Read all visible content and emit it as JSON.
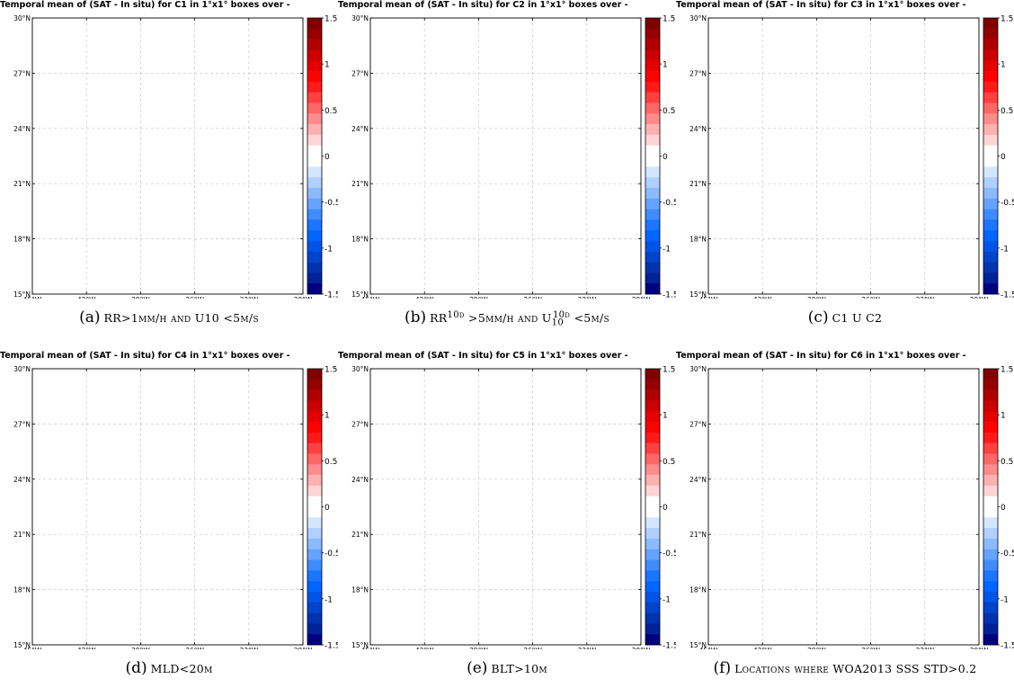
{
  "colorbar": {
    "ticks": [
      1.5,
      1,
      0.5,
      0,
      -0.5,
      -1,
      -1.5
    ],
    "tick_labels": [
      "1.5",
      "1",
      "0.5",
      "0",
      "-0.5",
      "-1",
      "-1.5"
    ],
    "range": [
      -1.5,
      1.5
    ],
    "colors_top_to_bottom": [
      "#800000",
      "#960000",
      "#b00000",
      "#cc0000",
      "#e60000",
      "#ff0000",
      "#ff1a1a",
      "#ff4040",
      "#ff6666",
      "#ff8c8c",
      "#ffb0b0",
      "#ffd4d4",
      "#ffffff",
      "#ffffff",
      "#d4e6ff",
      "#b0d0ff",
      "#8cbaff",
      "#66a3ff",
      "#408cff",
      "#1a75ff",
      "#0066ff",
      "#0055e6",
      "#0044cc",
      "#0033b0",
      "#002296",
      "#000080"
    ]
  },
  "chart_data": [
    {
      "type": "heatmap",
      "title": "Temporal mean of (SAT - In situ) for C1 in 1°x1° boxes over -",
      "xticks": [
        "45°W",
        "42°W",
        "39°W",
        "36°W",
        "33°W",
        "30°W"
      ],
      "yticks": [
        "30°N",
        "27°N",
        "24°N",
        "21°N",
        "18°N",
        "15°N"
      ],
      "xlim": [
        -45,
        -30
      ],
      "ylim": [
        15,
        30
      ],
      "grid": true,
      "values": [],
      "caption": {
        "letter": "(a)",
        "text": "RR>1mm/h and U10 <5m/s"
      }
    },
    {
      "type": "heatmap",
      "title": "Temporal mean of (SAT - In situ) for C2 in 1°x1° boxes over -",
      "xticks": [
        "45°W",
        "42°W",
        "39°W",
        "36°W",
        "33°W",
        "30°W"
      ],
      "yticks": [
        "30°N",
        "27°N",
        "24°N",
        "21°N",
        "18°N",
        "15°N"
      ],
      "xlim": [
        -45,
        -30
      ],
      "ylim": [
        15,
        30
      ],
      "grid": true,
      "values": [],
      "caption": {
        "letter": "(b)",
        "text": "RR10d >5mm/h and U10d10 <5m/s"
      }
    },
    {
      "type": "heatmap",
      "title": "Temporal mean of (SAT - In situ) for C3 in 1°x1° boxes over -",
      "xticks": [
        "45°W",
        "42°W",
        "39°W",
        "36°W",
        "33°W",
        "30°W"
      ],
      "yticks": [
        "30°N",
        "27°N",
        "24°N",
        "21°N",
        "18°N",
        "15°N"
      ],
      "xlim": [
        -45,
        -30
      ],
      "ylim": [
        15,
        30
      ],
      "grid": true,
      "values": [],
      "caption": {
        "letter": "(c)",
        "text": "C1 U C2"
      }
    },
    {
      "type": "heatmap",
      "title": "Temporal mean of (SAT - In situ) for C4 in 1°x1° boxes over -",
      "xticks": [
        "45°W",
        "42°W",
        "39°W",
        "36°W",
        "33°W",
        "30°W"
      ],
      "yticks": [
        "30°N",
        "27°N",
        "24°N",
        "21°N",
        "18°N",
        "15°N"
      ],
      "xlim": [
        -45,
        -30
      ],
      "ylim": [
        15,
        30
      ],
      "grid": true,
      "values": [],
      "caption": {
        "letter": "(d)",
        "text": "MLD<20m"
      }
    },
    {
      "type": "heatmap",
      "title": "Temporal mean of (SAT - In situ) for C5 in 1°x1° boxes over -",
      "xticks": [
        "45°W",
        "42°W",
        "39°W",
        "36°W",
        "33°W",
        "30°W"
      ],
      "yticks": [
        "30°N",
        "27°N",
        "24°N",
        "21°N",
        "18°N",
        "15°N"
      ],
      "xlim": [
        -45,
        -30
      ],
      "ylim": [
        15,
        30
      ],
      "grid": true,
      "values": [],
      "caption": {
        "letter": "(e)",
        "text": "BLT>10m"
      }
    },
    {
      "type": "heatmap",
      "title": "Temporal mean of (SAT - In situ) for C6 in 1°x1° boxes over -",
      "xticks": [
        "45°W",
        "42°W",
        "39°W",
        "36°W",
        "33°W",
        "30°W"
      ],
      "yticks": [
        "30°N",
        "27°N",
        "24°N",
        "21°N",
        "18°N",
        "15°N"
      ],
      "xlim": [
        -45,
        -30
      ],
      "ylim": [
        15,
        30
      ],
      "grid": true,
      "values": [],
      "caption": {
        "letter": "(f)",
        "text": "Locations where WOA2013 SSS STD>0.2"
      }
    }
  ]
}
